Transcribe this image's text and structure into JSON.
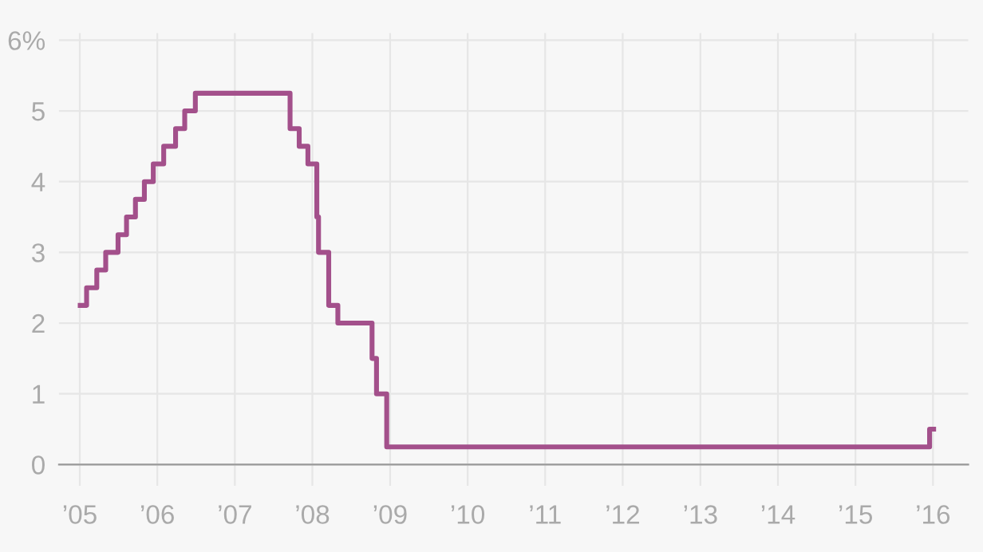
{
  "chart_data": {
    "type": "step",
    "x": [
      "2005-01-03",
      "2005-02-02",
      "2005-03-22",
      "2005-05-03",
      "2005-06-30",
      "2005-08-09",
      "2005-09-20",
      "2005-11-01",
      "2005-12-13",
      "2006-01-31",
      "2006-03-28",
      "2006-05-10",
      "2006-06-29",
      "2007-09-18",
      "2007-10-31",
      "2007-12-11",
      "2008-01-22",
      "2008-01-30",
      "2008-03-18",
      "2008-04-30",
      "2008-10-08",
      "2008-10-29",
      "2008-12-16",
      "2015-12-16",
      "2016-01-04"
    ],
    "series": [
      {
        "color": "#a3508b",
        "values": [
          2.25,
          2.5,
          2.75,
          3.0,
          3.25,
          3.5,
          3.75,
          4.0,
          4.25,
          4.5,
          4.75,
          5.0,
          5.25,
          4.75,
          4.5,
          4.25,
          3.5,
          3.0,
          2.25,
          2.0,
          1.5,
          1.0,
          0.25,
          0.5,
          0.5
        ]
      }
    ],
    "xlim": [
      "2004-09-25",
      "2016-06-15"
    ],
    "xticks": [
      {
        "value": "2005-01-01",
        "label": "’05"
      },
      {
        "value": "2006-01-01",
        "label": "’06"
      },
      {
        "value": "2007-01-01",
        "label": "’07"
      },
      {
        "value": "2008-01-01",
        "label": "’08"
      },
      {
        "value": "2009-01-01",
        "label": "’09"
      },
      {
        "value": "2010-01-01",
        "label": "’10"
      },
      {
        "value": "2011-01-01",
        "label": "’11"
      },
      {
        "value": "2012-01-01",
        "label": "’12"
      },
      {
        "value": "2013-01-01",
        "label": "’13"
      },
      {
        "value": "2014-01-01",
        "label": "’14"
      },
      {
        "value": "2015-01-01",
        "label": "’15"
      },
      {
        "value": "2016-01-01",
        "label": "’16"
      }
    ],
    "ylim": [
      -0.3,
      6.1
    ],
    "yticks": [
      0,
      1,
      2,
      3,
      4,
      5,
      {
        "value": 6,
        "label": "6%"
      }
    ],
    "grid": true
  }
}
